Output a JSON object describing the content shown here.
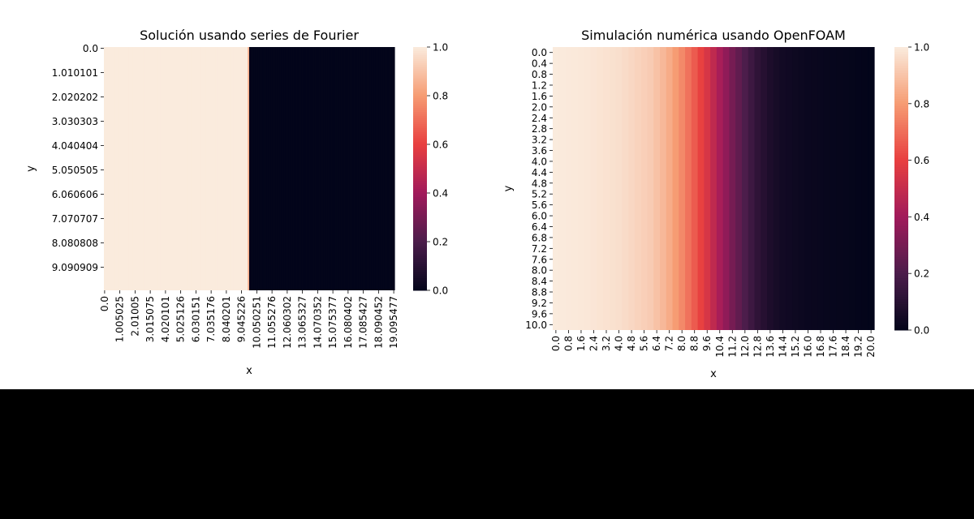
{
  "colors": {
    "background": "#ffffff",
    "bottom_band": "#000000",
    "colormap_rocket": [
      "#03051a",
      "#4c1d4b",
      "#a11a5b",
      "#e83f3f",
      "#f69c73",
      "#faebdd"
    ]
  },
  "chart_data": [
    {
      "type": "heatmap",
      "title": "Solución usando series de Fourier",
      "xlabel": "x",
      "ylabel": "y",
      "colormap": "rocket",
      "colorbar": {
        "vmin": 0.0,
        "vmax": 1.0,
        "ticks": [
          "0.0",
          "0.2",
          "0.4",
          "0.6",
          "0.8",
          "1.0"
        ]
      },
      "x_range": [
        0,
        20
      ],
      "y_range": [
        0,
        10
      ],
      "x_step": 0.100503,
      "y_step": 0.10101,
      "xtick_labels": [
        "0.0",
        "1.005025",
        "2.01005",
        "3.015075",
        "4.020101",
        "5.025126",
        "6.030151",
        "7.035176",
        "8.040201",
        "9.045226",
        "10.050251",
        "11.055276",
        "12.060302",
        "13.065327",
        "14.070352",
        "15.075377",
        "16.080402",
        "17.085427",
        "18.090452",
        "19.095477"
      ],
      "ytick_labels": [
        "0.0",
        "1.010101",
        "2.020202",
        "3.030303",
        "4.040404",
        "5.050505",
        "6.060606",
        "7.070707",
        "8.080808",
        "9.090909"
      ],
      "profile_x": [
        0.0,
        9.85,
        9.95,
        10.05,
        20.0
      ],
      "profile_value": [
        1.0,
        1.0,
        0.85,
        0.0,
        0.0
      ]
    },
    {
      "type": "heatmap",
      "title": "Simulación numérica usando OpenFOAM",
      "xlabel": "x",
      "ylabel": "y",
      "colormap": "rocket",
      "colorbar": {
        "vmin": 0.0,
        "vmax": 1.0,
        "ticks": [
          "0.0",
          "0.2",
          "0.4",
          "0.6",
          "0.8",
          "1.0"
        ]
      },
      "x_range": [
        0,
        20
      ],
      "y_range": [
        0,
        10
      ],
      "x_step": 0.4,
      "y_step": 0.4,
      "xtick_labels": [
        "0.0",
        "0.8",
        "1.6",
        "2.4",
        "3.2",
        "4.0",
        "4.8",
        "5.6",
        "6.4",
        "7.2",
        "8.0",
        "8.8",
        "9.6",
        "10.4",
        "11.2",
        "12.0",
        "12.8",
        "13.6",
        "14.4",
        "15.2",
        "16.0",
        "16.8",
        "17.6",
        "18.4",
        "19.2",
        "20.0"
      ],
      "ytick_labels": [
        "0.0",
        "0.4",
        "0.8",
        "1.2",
        "1.6",
        "2.0",
        "2.4",
        "2.8",
        "3.2",
        "3.6",
        "4.0",
        "4.4",
        "4.8",
        "5.2",
        "5.6",
        "6.0",
        "6.4",
        "6.8",
        "7.2",
        "7.6",
        "8.0",
        "8.4",
        "8.8",
        "9.2",
        "9.6",
        "10.0"
      ],
      "profile_x": [
        0.0,
        2.0,
        4.0,
        6.0,
        7.0,
        8.0,
        8.8,
        9.6,
        10.4,
        11.2,
        12.0,
        12.8,
        13.6,
        14.4,
        16.0,
        20.0
      ],
      "profile_value": [
        1.0,
        0.99,
        0.97,
        0.92,
        0.86,
        0.76,
        0.66,
        0.55,
        0.42,
        0.3,
        0.2,
        0.12,
        0.07,
        0.04,
        0.02,
        0.0
      ]
    }
  ]
}
